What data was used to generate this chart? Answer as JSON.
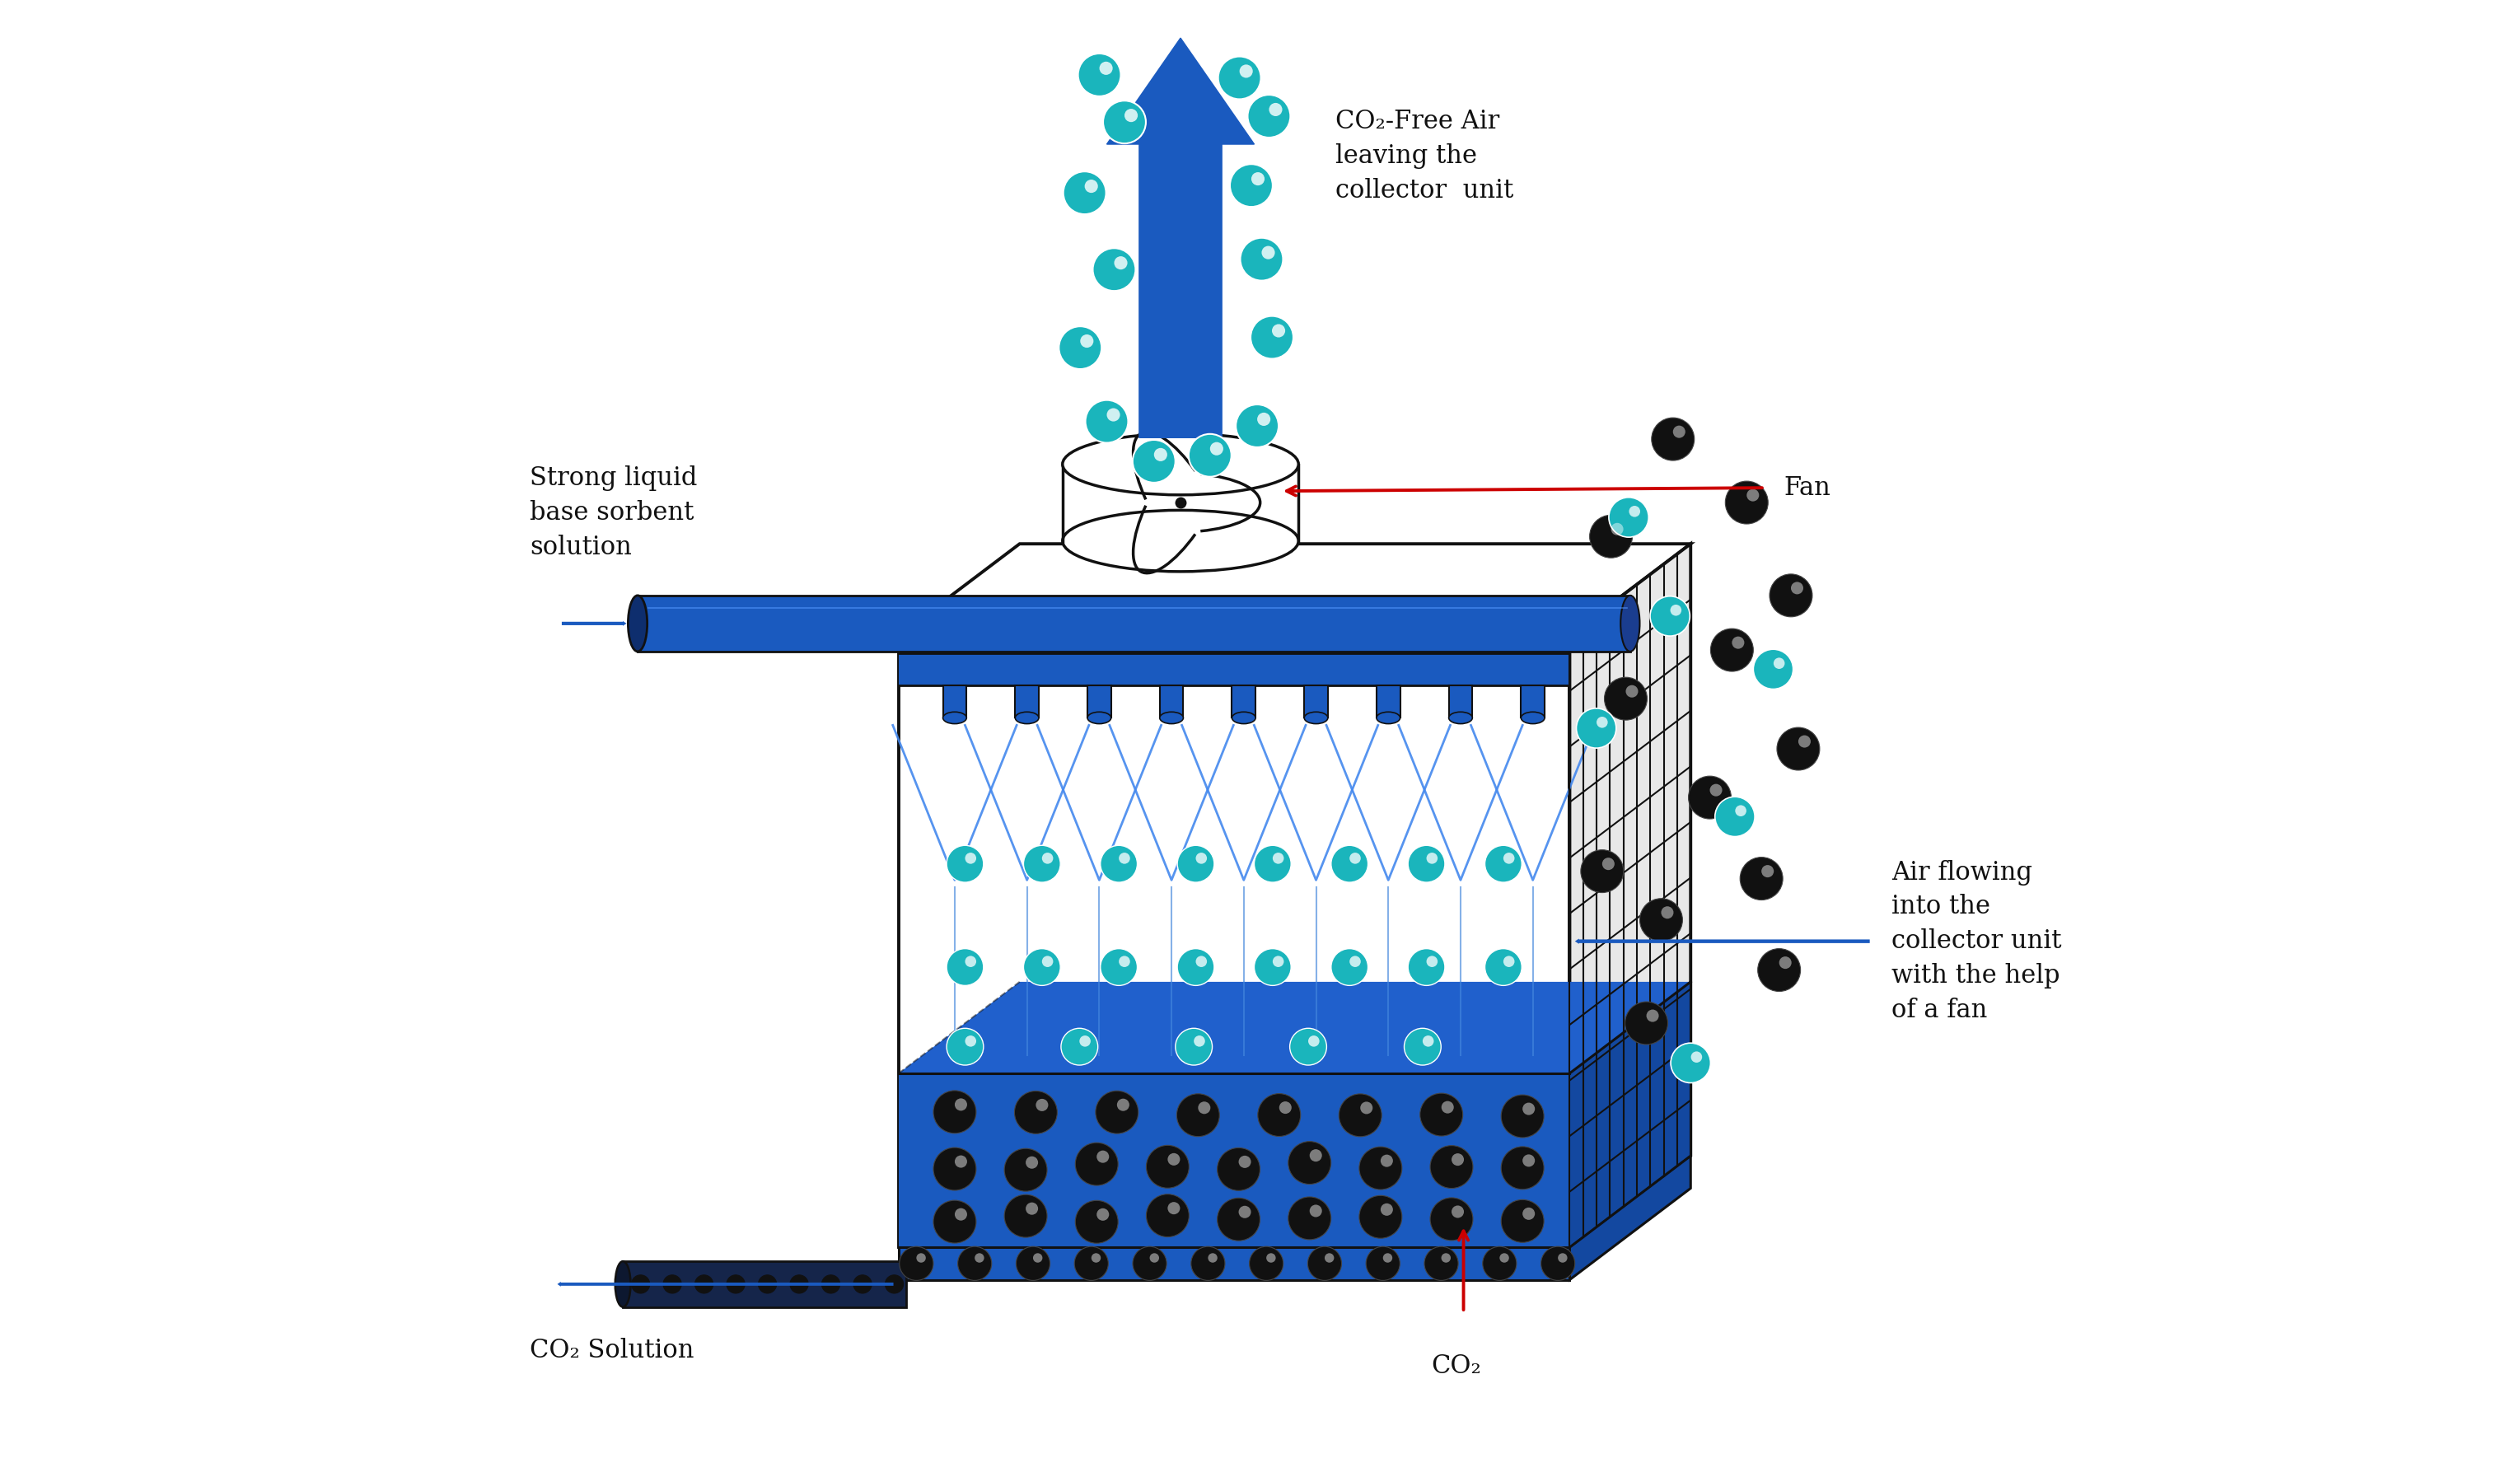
{
  "fig_width": 30.59,
  "fig_height": 17.93,
  "bg_color": "#ffffff",
  "box_color": "#111111",
  "blue": "#1a5abf",
  "blue_pipe": "#1a5abf",
  "blue_liquid": "#1a5abf",
  "teal": "#1ab5bc",
  "black_ball": "#111111",
  "red": "#cc0000",
  "text_color": "#111111",
  "label_co2free": "CO₂-Free Air\nleaving the\ncollector  unit",
  "label_fan": "Fan",
  "label_strong": "Strong liquid\nbase sorbent\nsolution",
  "label_air": "Air flowing\ninto the\ncollector unit\nwith the help\nof a fan",
  "label_co2sol": "CO₂ Solution",
  "label_co2": "CO₂"
}
